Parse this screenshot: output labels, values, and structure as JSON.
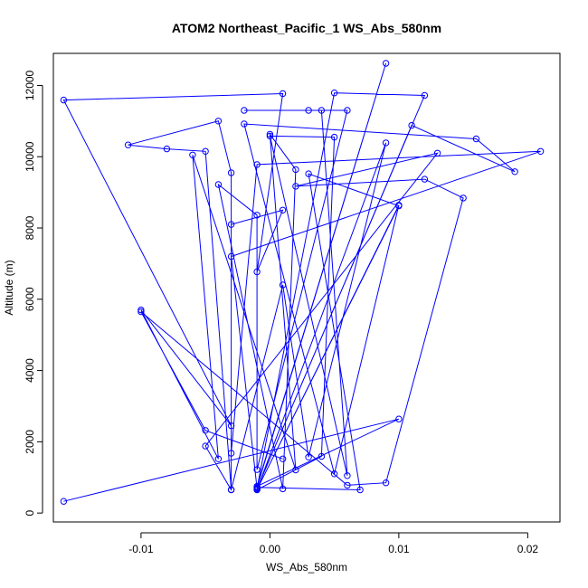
{
  "chart_data": {
    "type": "line",
    "title": "ATOM2 Northeast_Pacific_1 WS_Abs_580nm",
    "xlabel": "WS_Abs_580nm",
    "ylabel": "Altitude (m)",
    "xlim": [
      -0.0168,
      0.0225
    ],
    "ylim": [
      -250,
      12900
    ],
    "x_ticks": [
      -0.01,
      0.0,
      0.01,
      0.02
    ],
    "x_tick_labels": [
      "-0.01",
      "0.00",
      "0.01",
      "0.02"
    ],
    "y_ticks": [
      0,
      2000,
      4000,
      6000,
      8000,
      10000,
      12000
    ],
    "y_tick_labels": [
      "0",
      "2000",
      "4000",
      "6000",
      "8000",
      "10000",
      "12000"
    ],
    "grid": false,
    "line_color": "#0000ff",
    "marker": "open-circle",
    "series": [
      {
        "points": [
          [
            -0.016,
            330
          ],
          [
            0.01,
            2640
          ],
          [
            -0.001,
            750
          ],
          [
            0.009,
            12620
          ],
          [
            -0.001,
            720
          ],
          [
            0.007,
            650
          ],
          [
            0.003,
            9520
          ],
          [
            0.01,
            8620
          ],
          [
            -0.001,
            660
          ],
          [
            0.01,
            8640
          ],
          [
            0.005,
            1100
          ],
          [
            -0.002,
            10920
          ],
          [
            0.016,
            10500
          ],
          [
            0.019,
            9580
          ],
          [
            0.011,
            10880
          ],
          [
            -0.001,
            680
          ],
          [
            0.012,
            11720
          ],
          [
            0.005,
            11790
          ],
          [
            -0.001,
            700
          ],
          [
            -0.003,
            7200
          ],
          [
            0.021,
            10150
          ],
          [
            -0.001,
            9780
          ],
          [
            -0.003,
            1680
          ],
          [
            -0.003,
            9550
          ],
          [
            -0.004,
            11000
          ],
          [
            -0.011,
            10330
          ],
          [
            -0.008,
            10220
          ],
          [
            -0.005,
            10150
          ],
          [
            -0.003,
            660
          ],
          [
            -0.003,
            8100
          ],
          [
            0.001,
            8500
          ],
          [
            -0.001,
            6770
          ],
          [
            0.001,
            11770
          ],
          [
            -0.016,
            11590
          ],
          [
            -0.003,
            2450
          ],
          [
            -0.01,
            5700
          ],
          [
            -0.004,
            1520
          ],
          [
            -0.006,
            10050
          ],
          [
            0.002,
            1210
          ],
          [
            0.0,
            10630
          ],
          [
            0.002,
            9640
          ],
          [
            0.001,
            680
          ],
          [
            -0.004,
            9220
          ],
          [
            -0.001,
            8360
          ],
          [
            -0.001,
            1220
          ],
          [
            0.006,
            11300
          ],
          [
            -0.002,
            11300
          ],
          [
            0.003,
            11300
          ],
          [
            0.004,
            11300
          ],
          [
            0.006,
            1050
          ],
          [
            0.0,
            10580
          ],
          [
            0.005,
            10550
          ],
          [
            0.004,
            1590
          ],
          [
            -0.001,
            650
          ],
          [
            0.009,
            10390
          ],
          [
            0.003,
            1570
          ],
          [
            0.001,
            6400
          ],
          [
            -0.003,
            650
          ],
          [
            -0.005,
            1880
          ],
          [
            0.013,
            10100
          ],
          [
            0.002,
            9170
          ],
          [
            0.012,
            9370
          ],
          [
            0.015,
            8840
          ],
          [
            0.009,
            850
          ],
          [
            0.006,
            780
          ],
          [
            -0.01,
            5650
          ],
          [
            -0.005,
            2320
          ],
          [
            0.001,
            1520
          ]
        ]
      }
    ]
  }
}
